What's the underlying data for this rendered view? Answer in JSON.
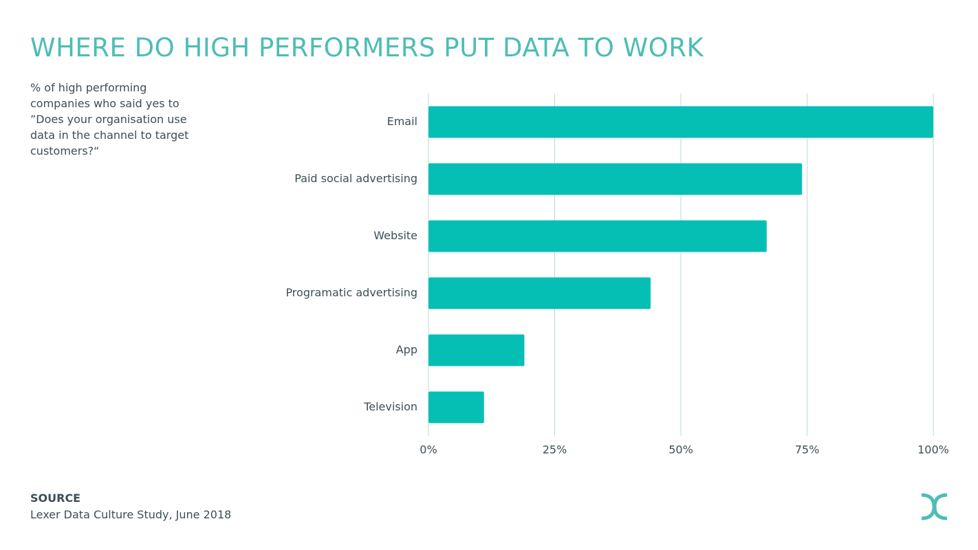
{
  "chart_data": {
    "type": "bar",
    "orientation": "horizontal",
    "title": "WHERE DO HIGH PERFORMERS PUT DATA TO WORK",
    "subtitle": "% of high performing companies who said yes to ”Does your organisation use data in the channel to target customers?“",
    "categories": [
      "Email",
      "Paid social advertising",
      "Website",
      "Programatic advertising",
      "App",
      "Television"
    ],
    "values": [
      100,
      74,
      67,
      44,
      19,
      11
    ],
    "color": "#05bfb5",
    "xlim": [
      0,
      100
    ],
    "xticks": [
      {
        "value": 0,
        "label": "0%"
      },
      {
        "value": 25,
        "label": "25%"
      },
      {
        "value": 50,
        "label": "50%"
      },
      {
        "value": 75,
        "label": "75%"
      },
      {
        "value": 100,
        "label": "100%"
      }
    ],
    "grid": true,
    "source_heading": "SOURCE",
    "source": "Lexer Data Culture Study, June 2018"
  }
}
